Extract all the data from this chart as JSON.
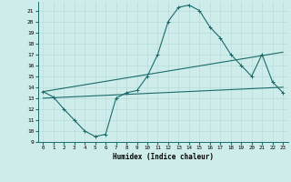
{
  "xlabel": "Humidex (Indice chaleur)",
  "bg_color": "#ceecea",
  "grid_color": "#b8dbd9",
  "line_color": "#1a6b6b",
  "xlim": [
    -0.5,
    23.5
  ],
  "ylim": [
    9,
    21.8
  ],
  "xticks": [
    0,
    1,
    2,
    3,
    4,
    5,
    6,
    7,
    8,
    9,
    10,
    11,
    12,
    13,
    14,
    15,
    16,
    17,
    18,
    19,
    20,
    21,
    22,
    23
  ],
  "yticks": [
    9,
    10,
    11,
    12,
    13,
    14,
    15,
    16,
    17,
    18,
    19,
    20,
    21
  ],
  "curve1_x": [
    0,
    1,
    2,
    3,
    4,
    5,
    6,
    7,
    8,
    9,
    10,
    11,
    12,
    13,
    14,
    15,
    16,
    17,
    18,
    19,
    20,
    21,
    22,
    23
  ],
  "curve1_y": [
    13.6,
    13.1,
    12.0,
    11.0,
    10.0,
    9.5,
    9.7,
    13.0,
    13.5,
    13.7,
    15.0,
    17.0,
    20.0,
    21.3,
    21.5,
    21.0,
    19.5,
    18.5,
    17.0,
    16.0,
    15.0,
    17.0,
    14.5,
    13.5
  ],
  "curve2_x": [
    0,
    23
  ],
  "curve2_y": [
    13.0,
    14.0
  ],
  "curve3_x": [
    0,
    23
  ],
  "curve3_y": [
    13.6,
    17.2
  ]
}
